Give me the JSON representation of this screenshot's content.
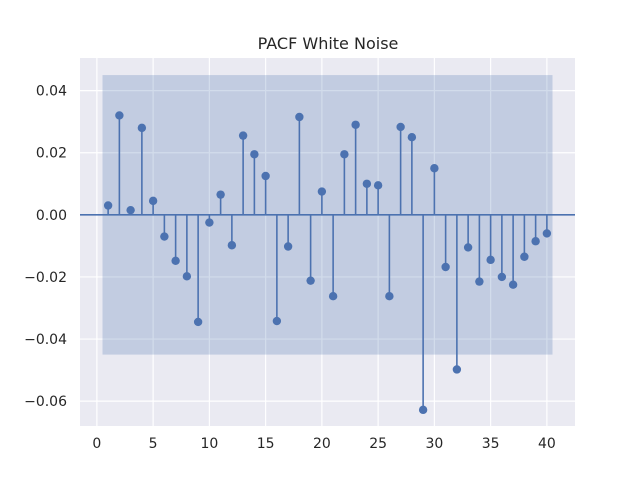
{
  "chart_data": {
    "type": "stem",
    "title": "PACF White Noise",
    "xlabel": "",
    "ylabel": "",
    "xlim": [
      -1.5,
      42.5
    ],
    "ylim": [
      -0.068,
      0.0505
    ],
    "x_ticks": [
      0,
      5,
      10,
      15,
      20,
      25,
      30,
      35,
      40
    ],
    "x_tick_labels": [
      "0",
      "5",
      "10",
      "15",
      "20",
      "25",
      "30",
      "35",
      "40"
    ],
    "y_ticks": [
      0.04,
      0.02,
      0.0,
      -0.02,
      -0.04,
      -0.06
    ],
    "y_tick_labels": [
      "0.04",
      "0.02",
      "0.00",
      "−0.02",
      "−0.04",
      "−0.06"
    ],
    "grid": true,
    "zero_line": true,
    "confidence_band": {
      "x_range": [
        0.5,
        40.5
      ],
      "lower": -0.045,
      "upper": 0.045
    },
    "x": [
      1,
      2,
      3,
      4,
      5,
      6,
      7,
      8,
      9,
      10,
      11,
      12,
      13,
      14,
      15,
      16,
      17,
      18,
      19,
      20,
      21,
      22,
      23,
      24,
      25,
      26,
      27,
      28,
      29,
      30,
      31,
      32,
      33,
      34,
      35,
      36,
      37,
      38,
      39,
      40
    ],
    "values": [
      0.003,
      0.032,
      0.0015,
      0.028,
      0.0045,
      -0.007,
      -0.0148,
      -0.0198,
      -0.0345,
      -0.0025,
      0.0065,
      -0.0098,
      0.0255,
      0.0195,
      0.0125,
      -0.0342,
      -0.0102,
      0.0315,
      -0.0212,
      0.0075,
      -0.0262,
      0.0195,
      0.029,
      0.01,
      0.0095,
      -0.0262,
      0.0283,
      0.025,
      -0.0628,
      0.015,
      -0.0168,
      -0.0498,
      -0.0105,
      -0.0215,
      -0.0145,
      -0.02,
      -0.0225,
      -0.0135,
      -0.0085,
      -0.006
    ],
    "colors": {
      "plot_background": "#eaeaf2",
      "grid": "#ffffff",
      "stem": "#4c72b0",
      "band": "#4c72b0"
    }
  }
}
